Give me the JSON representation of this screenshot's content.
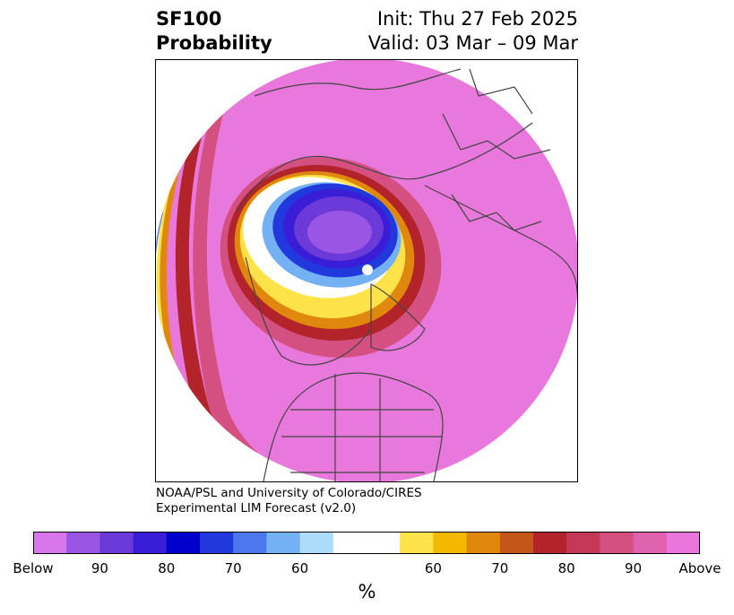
{
  "header": {
    "title_line1": "SF100",
    "title_line2": "Probability",
    "init_text": "Init: Thu 27 Feb 2025",
    "valid_text": "Valid: 03 Mar – 09 Mar"
  },
  "credit": {
    "line1": "NOAA/PSL and University of Colorado/CIRES",
    "line2": "Experimental LIM Forecast (v2.0)"
  },
  "colorbar": {
    "units": "%",
    "colors": [
      "#d876ec",
      "#9b55e4",
      "#6b3ad8",
      "#3a1dd6",
      "#0000cd",
      "#2038dc",
      "#4b78ec",
      "#74b0f4",
      "#acdcfa",
      "#ffffff",
      "#ffffff",
      "#fde24a",
      "#f5b800",
      "#e0880d",
      "#c5561b",
      "#b2242a",
      "#c43858",
      "#d45080",
      "#de62ad",
      "#e876dc"
    ],
    "tick_labels": [
      "Below",
      "90",
      "80",
      "70",
      "60",
      "60",
      "70",
      "80",
      "90",
      "Above"
    ]
  },
  "map": {
    "colors": {
      "above_outer": "#e878dc",
      "above_mid": "#d45080",
      "red": "#b2242a",
      "orange": "#e0880d",
      "yellow": "#fde24a",
      "white": "#ffffff",
      "blue_light": "#74b0f4",
      "blue": "#0000cd",
      "purple": "#9b55e4",
      "coast": "#444444"
    }
  }
}
